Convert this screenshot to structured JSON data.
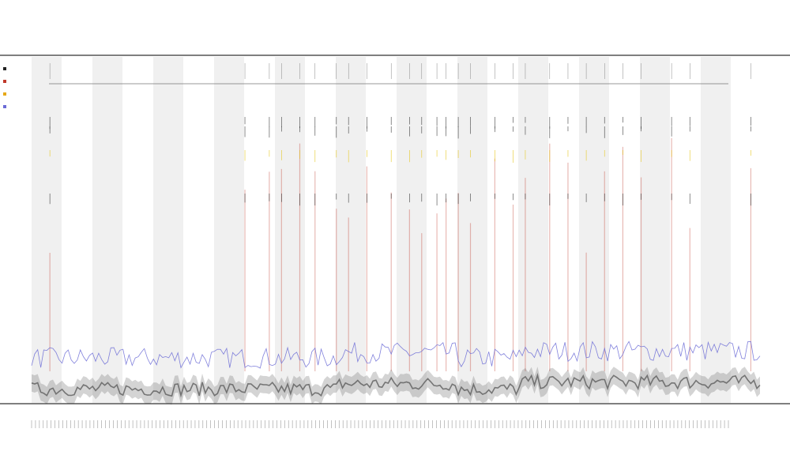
{
  "chart_data": {
    "type": "area",
    "title": "",
    "subtitle_1": "",
    "subtitle_2": "",
    "xlabel": "",
    "ylabel": "",
    "legend_position": "top-left",
    "legend": [
      {
        "name": "",
        "color": "#222222"
      },
      {
        "name": "",
        "color": "#c0392b"
      },
      {
        "name": "",
        "color": "#e6a817"
      },
      {
        "name": "",
        "color": "#6b6bd6"
      }
    ],
    "grid": false,
    "shaded_bands": true,
    "x_count": 240,
    "ylim": [
      0,
      100
    ],
    "series": [
      {
        "name": "",
        "color": "#6b6bd6",
        "base": 13,
        "spread": 6
      },
      {
        "name": "",
        "color": "#555555",
        "base": 4,
        "spread": 4
      }
    ],
    "spike_columns": [
      6,
      70,
      78,
      82,
      88,
      93,
      100,
      104,
      110,
      118,
      124,
      128,
      133,
      136,
      140,
      144,
      152,
      158,
      162,
      170,
      176,
      182,
      188,
      194,
      200,
      210,
      216,
      236
    ]
  },
  "colors": {
    "band": "#f0f0f0",
    "axis": "#333333",
    "line_blue": "#6b6bd6",
    "line_dark": "#555555",
    "spike_red": "#c0392b",
    "spike_yellow": "#e6c617"
  }
}
